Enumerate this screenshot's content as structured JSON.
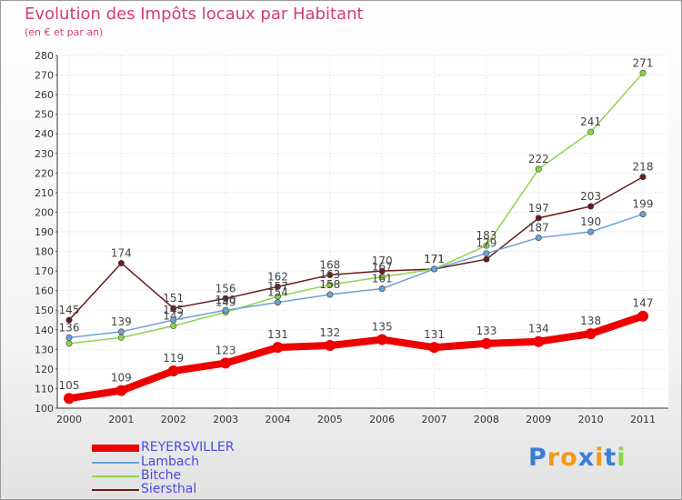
{
  "header": {
    "title": "Evolution des Impôts locaux par Habitant",
    "subtitle": "(en € et par an)"
  },
  "chart_data": {
    "type": "line",
    "title": "Evolution des Impôts locaux par Habitant",
    "subtitle": "(en € et par an)",
    "xlabel": "",
    "ylabel": "",
    "ylim": [
      100,
      280
    ],
    "ystep": 10,
    "grid": true,
    "categories": [
      "2000",
      "2001",
      "2002",
      "2003",
      "2004",
      "2005",
      "2006",
      "2007",
      "2008",
      "2009",
      "2010",
      "2011"
    ],
    "series": [
      {
        "name": "Siersthal",
        "color": "#6a1a1a",
        "values": [
          145,
          174,
          151,
          156,
          162,
          168,
          170,
          171,
          176,
          197,
          203,
          218
        ]
      },
      {
        "name": "Bitche",
        "color": "#8cd64a",
        "values": [
          133,
          136,
          142,
          149,
          157,
          163,
          167,
          171,
          183,
          222,
          241,
          271
        ]
      },
      {
        "name": "Lambach",
        "color": "#6aa2d6",
        "values": [
          136,
          139,
          145,
          150,
          154,
          158,
          161,
          171,
          179,
          187,
          190,
          199
        ]
      },
      {
        "name": "REYERSVILLER",
        "color": "#ee0000",
        "values": [
          105,
          109,
          119,
          123,
          131,
          132,
          135,
          131,
          133,
          134,
          138,
          147
        ]
      }
    ],
    "data_labels": {
      "Siersthal": [
        "145",
        "174",
        "151",
        "156",
        "162",
        "168",
        "170",
        "171",
        "",
        "197",
        "203",
        "218"
      ],
      "Bitche": [
        "",
        "",
        "142",
        "149",
        "157",
        "163",
        "167",
        "171",
        "183",
        "222",
        "241",
        "271"
      ],
      "Lambach": [
        "136",
        "139",
        "145",
        "150",
        "154",
        "158",
        "161",
        "171",
        "179",
        "187",
        "190",
        "199"
      ],
      "REYERSVILLER": [
        "105",
        "109",
        "119",
        "123",
        "131",
        "132",
        "135",
        "131",
        "133",
        "134",
        "138",
        "147"
      ]
    },
    "legend_position": "bottom-left"
  },
  "legend": [
    {
      "name": "REYERSVILLER",
      "color": "#ee0000"
    },
    {
      "name": "Lambach",
      "color": "#6aa2d6"
    },
    {
      "name": "Bitche",
      "color": "#8cd64a"
    },
    {
      "name": "Siersthal",
      "color": "#6a1a1a"
    }
  ],
  "logo": {
    "text": "Proxiti",
    "letters": [
      "P",
      "r",
      "o",
      "x",
      "i",
      "t",
      "i"
    ],
    "colors": [
      "#3a7fd5",
      "#f09a1a",
      "#f09a1a",
      "#3a7fd5",
      "#f09a1a",
      "#3a7fd5",
      "#8cd64a"
    ]
  }
}
